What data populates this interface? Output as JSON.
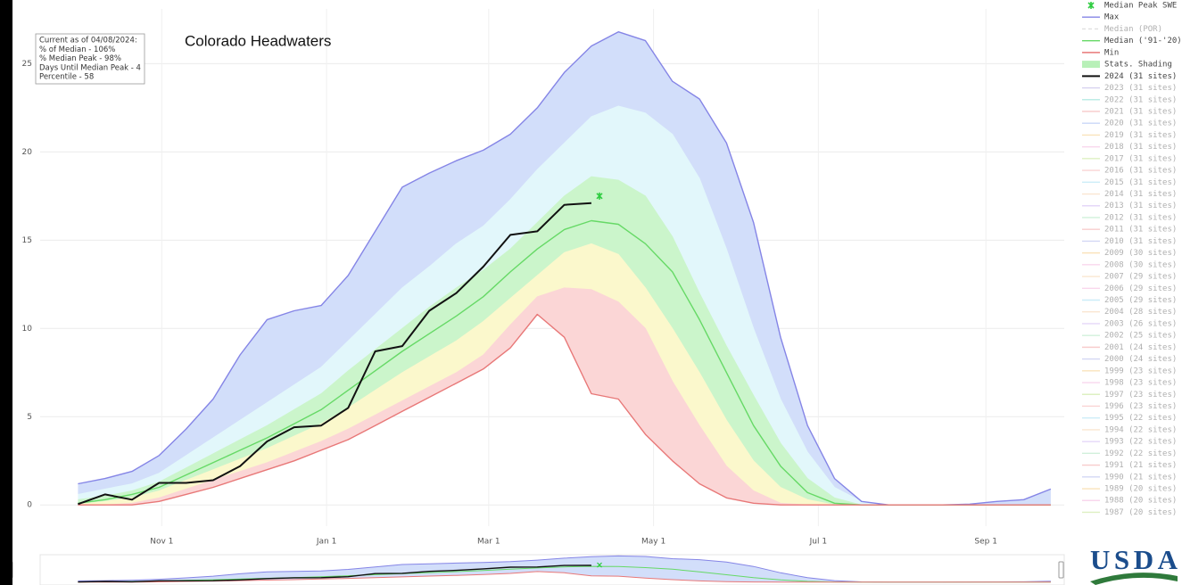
{
  "chart_data": {
    "type": "line",
    "title": "Colorado Headwaters",
    "annotation": [
      "Current as of 04/08/2024:",
      "% of Median - 106%",
      "% Median Peak - 98%",
      "Days Until Median Peak - 4",
      "Percentile - 58"
    ],
    "x": [
      0,
      10,
      20,
      30,
      40,
      50,
      60,
      70,
      80,
      90,
      100,
      110,
      120,
      130,
      140,
      150,
      160,
      170,
      180,
      190,
      200,
      210,
      220,
      230,
      240,
      250,
      260,
      270,
      280,
      290,
      300,
      310,
      320,
      330,
      340,
      350,
      360
    ],
    "xlim": [
      -14,
      365
    ],
    "xticks": [
      {
        "value": 31,
        "label": "Nov 1"
      },
      {
        "value": 92,
        "label": "Jan 1"
      },
      {
        "value": 152,
        "label": "Mar 1"
      },
      {
        "value": 213,
        "label": "May 1"
      },
      {
        "value": 274,
        "label": "Jul 1"
      },
      {
        "value": 336,
        "label": "Sep 1"
      }
    ],
    "ylim": [
      -1.2,
      28.1
    ],
    "yticks": [
      0,
      5,
      10,
      15,
      20,
      25
    ],
    "grid": true,
    "median_peak": {
      "name": "Median Peak SWE",
      "x": 193,
      "y": 17.5,
      "color": "#2ecc40"
    },
    "stats_shading": {
      "name": "Stats. Shading",
      "color": "#b8f0b8",
      "colors": [
        "#d2defa",
        "#e2f7fb",
        "#cbf5cb",
        "#fbf8cc",
        "#fbd6d6"
      ],
      "levels": [
        [
          0.6,
          0.9,
          1.2,
          1.8,
          2.8,
          3.8,
          4.8,
          5.8,
          6.8,
          7.8,
          9.3,
          10.8,
          12.3,
          13.5,
          14.8,
          15.8,
          17.3,
          19.0,
          20.5,
          22.0,
          22.6,
          22.2,
          21.0,
          18.5,
          14.5,
          10.0,
          6.0,
          3.0,
          1.0,
          0.2,
          0,
          0,
          0,
          0,
          0,
          0,
          0
        ],
        [
          0.3,
          0.5,
          0.8,
          1.3,
          2.1,
          2.9,
          3.7,
          4.5,
          5.4,
          6.3,
          7.6,
          8.8,
          10.0,
          11.2,
          12.3,
          13.3,
          14.5,
          16.0,
          17.5,
          18.6,
          18.4,
          17.5,
          15.2,
          12.0,
          9.0,
          6.2,
          3.5,
          1.5,
          0.4,
          0,
          0,
          0,
          0,
          0,
          0,
          0,
          0
        ],
        [
          0.05,
          0.2,
          0.4,
          0.8,
          1.4,
          2.0,
          2.6,
          3.2,
          3.9,
          4.6,
          5.5,
          6.5,
          7.5,
          8.4,
          9.3,
          10.4,
          11.7,
          13.0,
          14.3,
          14.8,
          14.2,
          12.3,
          10.0,
          7.5,
          4.8,
          2.5,
          1.0,
          0.3,
          0,
          0,
          0,
          0,
          0,
          0,
          0,
          0,
          0
        ],
        [
          0,
          0,
          0.1,
          0.4,
          0.9,
          1.4,
          1.9,
          2.4,
          3.0,
          3.6,
          4.3,
          5.1,
          5.9,
          6.7,
          7.5,
          8.5,
          10.2,
          11.8,
          12.3,
          12.2,
          11.5,
          10.0,
          7.0,
          4.5,
          2.2,
          0.8,
          0.1,
          0,
          0,
          0,
          0,
          0,
          0,
          0,
          0,
          0,
          0
        ]
      ]
    },
    "series": [
      {
        "name": "Max",
        "color": "#8585e6",
        "values": [
          1.2,
          1.5,
          1.9,
          2.8,
          4.3,
          6.0,
          8.5,
          10.5,
          11.0,
          11.3,
          13.0,
          15.5,
          18.0,
          18.8,
          19.5,
          20.1,
          21.0,
          22.5,
          24.5,
          26.0,
          26.8,
          26.3,
          24.0,
          23.0,
          20.5,
          16.0,
          9.5,
          4.5,
          1.5,
          0.2,
          0,
          0,
          0,
          0.05,
          0.2,
          0.3,
          0.9
        ]
      },
      {
        "name": "Median (POR)",
        "color": "#bbbbbb",
        "visible": false
      },
      {
        "name": "Median ('91-'20)",
        "color": "#66d966",
        "values": [
          0.1,
          0.3,
          0.6,
          1.0,
          1.7,
          2.4,
          3.1,
          3.8,
          4.6,
          5.4,
          6.5,
          7.6,
          8.7,
          9.7,
          10.7,
          11.8,
          13.2,
          14.5,
          15.6,
          16.1,
          15.9,
          14.8,
          13.2,
          10.5,
          7.5,
          4.5,
          2.2,
          0.7,
          0.1,
          0,
          0,
          0,
          0,
          0,
          0,
          0,
          0
        ]
      },
      {
        "name": "Min",
        "color": "#e87878",
        "values": [
          0,
          0,
          0,
          0.2,
          0.6,
          1.0,
          1.5,
          2.0,
          2.5,
          3.1,
          3.7,
          4.5,
          5.3,
          6.1,
          6.9,
          7.7,
          8.9,
          10.8,
          9.5,
          6.3,
          6.0,
          4.0,
          2.5,
          1.2,
          0.4,
          0.1,
          0,
          0,
          0,
          0,
          0,
          0,
          0,
          0,
          0,
          0,
          0
        ]
      },
      {
        "name": "2024 (31 sites)",
        "color": "#111111",
        "values": [
          0.05,
          0.6,
          0.3,
          1.25,
          1.25,
          1.4,
          2.2,
          3.6,
          4.4,
          4.5,
          5.5,
          8.7,
          9.0,
          11.0,
          12.0,
          13.5,
          15.3,
          15.5,
          17.0,
          17.1,
          null,
          null,
          null,
          null,
          null,
          null,
          null,
          null,
          null,
          null,
          null,
          null,
          null,
          null,
          null,
          null,
          null
        ]
      },
      {
        "name": "2023 (31 sites)",
        "color": "#a79be0",
        "visible": false
      },
      {
        "name": "2022 (31 sites)",
        "color": "#6fd6c8",
        "visible": false
      },
      {
        "name": "2021 (31 sites)",
        "color": "#f08a8a",
        "visible": false
      },
      {
        "name": "2020 (31 sites)",
        "color": "#8aa7f0",
        "visible": false
      },
      {
        "name": "2019 (31 sites)",
        "color": "#f5c26b",
        "visible": false
      },
      {
        "name": "2018 (31 sites)",
        "color": "#f2a7d9",
        "visible": false
      },
      {
        "name": "2017 (31 sites)",
        "color": "#b7e07a",
        "visible": false
      },
      {
        "name": "2016 (31 sites)",
        "color": "#f5a0a0",
        "visible": false
      },
      {
        "name": "2015 (31 sites)",
        "color": "#8fd9f0",
        "visible": false
      },
      {
        "name": "2014 (31 sites)",
        "color": "#f5c99a",
        "visible": false
      },
      {
        "name": "2013 (31 sites)",
        "color": "#c7a8f0",
        "visible": false
      },
      {
        "name": "2012 (31 sites)",
        "color": "#9be0b0",
        "visible": false
      },
      {
        "name": "2011 (31 sites)",
        "color": "#f09090",
        "visible": false
      },
      {
        "name": "2010 (31 sites)",
        "color": "#9fa8e8",
        "visible": false
      },
      {
        "name": "2009 (30 sites)",
        "color": "#f5c26b",
        "visible": false
      },
      {
        "name": "2008 (30 sites)",
        "color": "#f2a7d9",
        "visible": false
      },
      {
        "name": "2007 (29 sites)",
        "color": "#f5c99a",
        "visible": false
      },
      {
        "name": "2006 (29 sites)",
        "color": "#f2a7d9",
        "visible": false
      },
      {
        "name": "2005 (29 sites)",
        "color": "#8fd9f0",
        "visible": false
      },
      {
        "name": "2004 (28 sites)",
        "color": "#f5c99a",
        "visible": false
      },
      {
        "name": "2003 (26 sites)",
        "color": "#c7a8f0",
        "visible": false
      },
      {
        "name": "2002 (25 sites)",
        "color": "#9be0b0",
        "visible": false
      },
      {
        "name": "2001 (24 sites)",
        "color": "#f09090",
        "visible": false
      },
      {
        "name": "2000 (24 sites)",
        "color": "#9fa8e8",
        "visible": false
      },
      {
        "name": "1999 (23 sites)",
        "color": "#f5c26b",
        "visible": false
      },
      {
        "name": "1998 (23 sites)",
        "color": "#f2a7d9",
        "visible": false
      },
      {
        "name": "1997 (23 sites)",
        "color": "#b7e07a",
        "visible": false
      },
      {
        "name": "1996 (23 sites)",
        "color": "#f5a0a0",
        "visible": false
      },
      {
        "name": "1995 (22 sites)",
        "color": "#8fd9f0",
        "visible": false
      },
      {
        "name": "1994 (22 sites)",
        "color": "#f5c99a",
        "visible": false
      },
      {
        "name": "1993 (22 sites)",
        "color": "#c7a8f0",
        "visible": false
      },
      {
        "name": "1992 (22 sites)",
        "color": "#9be0b0",
        "visible": false
      },
      {
        "name": "1991 (21 sites)",
        "color": "#f09090",
        "visible": false
      },
      {
        "name": "1990 (21 sites)",
        "color": "#9fa8e8",
        "visible": false
      },
      {
        "name": "1989 (20 sites)",
        "color": "#f5c26b",
        "visible": false
      },
      {
        "name": "1988 (20 sites)",
        "color": "#f2a7d9",
        "visible": false
      },
      {
        "name": "1987 (20 sites)",
        "color": "#b7e07a",
        "visible": false
      }
    ]
  },
  "logo": "USDA"
}
